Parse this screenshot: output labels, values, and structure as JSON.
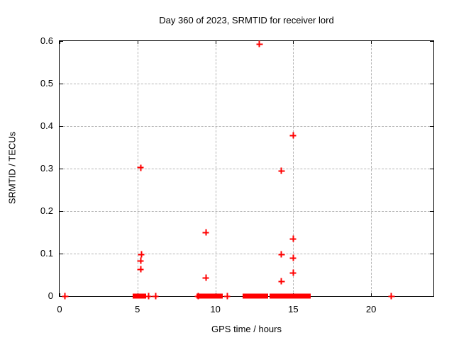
{
  "title": "Day 360 of 2023, SRMTID for receiver lord",
  "colors": {
    "marker": "#ff0000",
    "grid": "#b4b4b4",
    "axis": "#000000",
    "background": "#ffffff"
  },
  "axes": {
    "xlabel": "GPS time / hours",
    "ylabel": "SRMTID / TECUs",
    "x_tick_labels": [
      "0",
      "5",
      "10",
      "15",
      "20"
    ],
    "x_tick_values": [
      0,
      5,
      10,
      15,
      20
    ],
    "y_tick_labels": [
      "0",
      "0.1",
      "0.2",
      "0.3",
      "0.4",
      "0.5",
      "0.6"
    ],
    "y_tick_values": [
      0,
      0.1,
      0.2,
      0.3,
      0.4,
      0.5,
      0.6
    ],
    "x_range": [
      0,
      24
    ],
    "y_range": [
      0,
      0.6
    ],
    "grid_x_values": [
      5,
      10,
      15,
      20
    ],
    "grid_y_values": [
      0.1,
      0.2,
      0.3,
      0.4,
      0.5
    ]
  },
  "chart_data": {
    "type": "scatter",
    "title": "Day 360 of 2023, SRMTID for receiver lord",
    "xlabel": "GPS time / hours",
    "ylabel": "SRMTID / TECUs",
    "xlim": [
      0,
      24
    ],
    "ylim": [
      0,
      0.6
    ],
    "grid": true,
    "legend": false,
    "marker": "plus",
    "series_color": "#ff0000",
    "points": [
      [
        0.35,
        0
      ],
      [
        5.2,
        0.302
      ],
      [
        5.25,
        0.098
      ],
      [
        5.2,
        0.083
      ],
      [
        5.2,
        0.063
      ],
      [
        5.7,
        0
      ],
      [
        6.15,
        0
      ],
      [
        8.9,
        0
      ],
      [
        9.4,
        0.15
      ],
      [
        9.4,
        0.043
      ],
      [
        10.75,
        0
      ],
      [
        12.83,
        0.593
      ],
      [
        14.25,
        0.295
      ],
      [
        14.25,
        0.098
      ],
      [
        14.25,
        0.035
      ],
      [
        15.0,
        0.378
      ],
      [
        15.0,
        0.135
      ],
      [
        15.0,
        0.09
      ],
      [
        15.0,
        0.055
      ],
      [
        21.3,
        0
      ]
    ],
    "zero_value_runs": [
      [
        4.9,
        5.35
      ],
      [
        9.0,
        10.25
      ],
      [
        11.95,
        13.2
      ],
      [
        13.7,
        14.4
      ],
      [
        14.8,
        15.9
      ]
    ]
  }
}
